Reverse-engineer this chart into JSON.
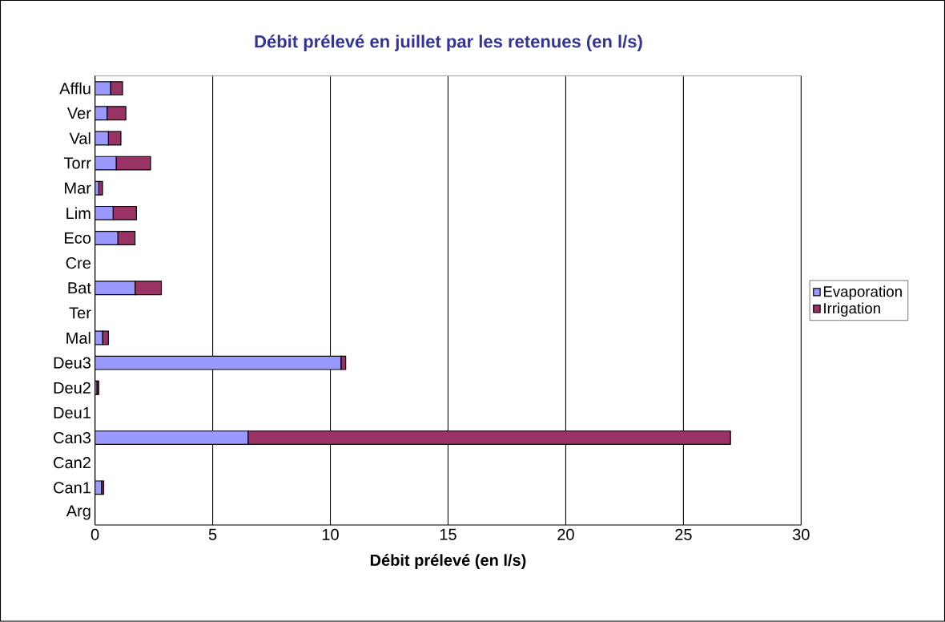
{
  "chart_data": {
    "type": "bar",
    "orientation": "horizontal",
    "stacked": true,
    "title": "Débit prélevé en juillet par les retenues (en l/s)",
    "xlabel": "Débit prélevé (en l/s)",
    "categories": [
      "Afflu",
      "Ver",
      "Val",
      "Torr",
      "Mar",
      "Lim",
      "Eco",
      "Cre",
      "Bat",
      "Ter",
      "Mal",
      "Deu3",
      "Deu2",
      "Deu1",
      "Can3",
      "Can2",
      "Can1",
      "Arg"
    ],
    "series": [
      {
        "name": "Evaporation",
        "color": "#9999ff",
        "values": [
          0.66,
          0.51,
          0.57,
          0.9,
          0.16,
          0.77,
          0.97,
          0,
          1.7,
          0,
          0.32,
          10.45,
          0.08,
          0,
          6.5,
          0,
          0.28,
          0
        ]
      },
      {
        "name": "Irrigation",
        "color": "#993366",
        "values": [
          0.51,
          0.8,
          0.53,
          1.46,
          0.16,
          0.99,
          0.73,
          0,
          1.12,
          0,
          0.25,
          0.2,
          0.08,
          0,
          20.5,
          0,
          0.09,
          0
        ]
      }
    ],
    "xlim": [
      0,
      30
    ],
    "xticks": [
      0,
      5,
      10,
      15,
      20,
      25,
      30
    ],
    "grid": "x",
    "legend": "right"
  }
}
